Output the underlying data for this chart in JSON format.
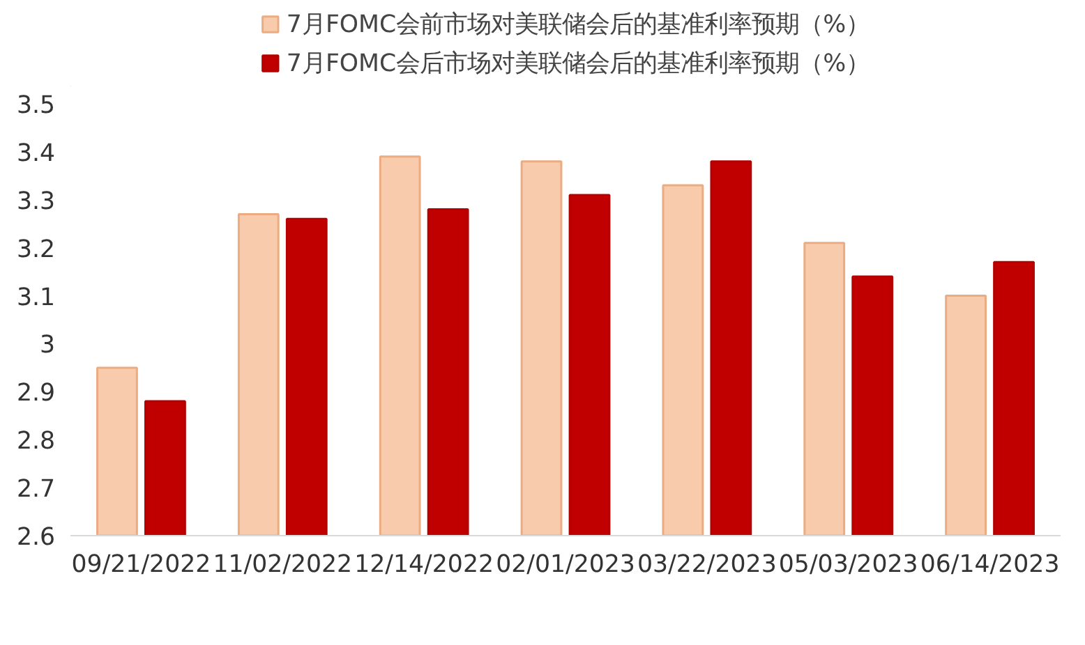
{
  "chart_data": {
    "type": "bar",
    "categories": [
      "09/21/2022",
      "11/02/2022",
      "12/14/2022",
      "02/01/2023",
      "03/22/2023",
      "05/03/2023",
      "06/14/2023"
    ],
    "series": [
      {
        "name": "7月FOMC会前市场对美联储会后的基准利率预期（%）",
        "color": "#f8cbad",
        "values": [
          2.95,
          3.27,
          3.39,
          3.38,
          3.33,
          3.21,
          3.1
        ]
      },
      {
        "name": "7月FOMC会后市场对美联储会后的基准利率预期（%）",
        "color": "#c00000",
        "values": [
          2.88,
          3.26,
          3.28,
          3.31,
          3.38,
          3.14,
          3.17
        ]
      }
    ],
    "ylim": [
      2.6,
      3.5
    ],
    "yticks": [
      2.6,
      2.7,
      2.8,
      2.9,
      3,
      3.1,
      3.2,
      3.3,
      3.4,
      3.5
    ],
    "grid": false,
    "legend": "top"
  }
}
